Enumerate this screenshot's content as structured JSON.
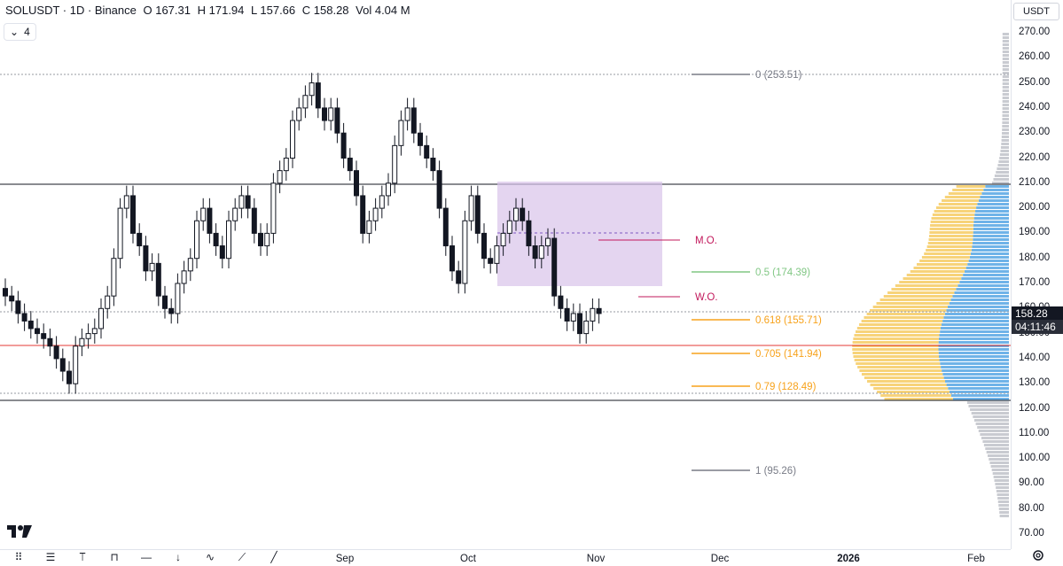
{
  "legend": {
    "symbol": "SOLUSDT · 1D · Binance",
    "open": "O 167.31",
    "high": "H 171.94",
    "low": "L 157.66",
    "close": "C 158.28",
    "volume": "Vol 4.04 M"
  },
  "indicator_toggle": {
    "count": "4",
    "chevron": "⌄"
  },
  "currency": "USDT",
  "price_axis": [
    "270.00",
    "260.00",
    "250.00",
    "240.00",
    "230.00",
    "220.00",
    "210.00",
    "200.00",
    "190.00",
    "180.00",
    "170.00",
    "160.00",
    "150.00",
    "140.00",
    "130.00",
    "120.00",
    "110.00",
    "100.00",
    "90.00",
    "80.00",
    "70.00"
  ],
  "time_axis": [
    {
      "label": "Sep",
      "bold": false
    },
    {
      "label": "Oct",
      "bold": false
    },
    {
      "label": "Nov",
      "bold": false
    },
    {
      "label": "Dec",
      "bold": false
    },
    {
      "label": "2026",
      "bold": true
    },
    {
      "label": "Feb",
      "bold": false
    }
  ],
  "last_price": "158.28",
  "countdown": "04:11:46",
  "fib_levels": [
    {
      "label": "0 (253.51)",
      "color": "#787b86"
    },
    {
      "label": "0.5 (174.39)",
      "color": "#81c784"
    },
    {
      "label": "0.618 (155.71)",
      "color": "#f7a21b"
    },
    {
      "label": "0.705 (141.94)",
      "color": "#f7a21b"
    },
    {
      "label": "0.79 (128.49)",
      "color": "#f7a21b"
    },
    {
      "label": "1 (95.26)",
      "color": "#787b86"
    }
  ],
  "annotations": [
    {
      "label": "M.O.",
      "color": "#c2185b"
    },
    {
      "label": "W.O.",
      "color": "#c2185b"
    }
  ],
  "logo_text": "17",
  "toolbar_icons": [
    "grid-icon",
    "lines-icon",
    "text-cursor-icon",
    "measure-icon",
    "horizontal-line-icon",
    "arrow-down-icon",
    "curve-icon",
    "draw-icon",
    "ray-icon"
  ],
  "settings_icon": "settings-icon",
  "colors": {
    "bull": "#131722",
    "bear": "#131722",
    "zone": "#d8c3ea",
    "vp_up": "#f7d37a",
    "vp_down": "#6fb3e8",
    "vp_outside": "#c9cbd1",
    "support": "#e53935"
  },
  "chart_data": {
    "type": "candlestick",
    "x_range": [
      "2025-07-05",
      "2026-02-05"
    ],
    "y_range": [
      65,
      277
    ],
    "candles_approx_close": [
      165,
      163,
      158,
      155,
      152,
      150,
      148,
      145,
      140,
      135,
      130,
      145,
      148,
      150,
      152,
      160,
      165,
      180,
      200,
      205,
      190,
      185,
      175,
      178,
      165,
      160,
      158,
      170,
      175,
      180,
      195,
      200,
      190,
      185,
      180,
      195,
      200,
      205,
      200,
      190,
      185,
      190,
      210,
      215,
      220,
      235,
      240,
      245,
      250,
      240,
      235,
      240,
      230,
      220,
      215,
      205,
      190,
      195,
      200,
      205,
      210,
      225,
      235,
      240,
      230,
      225,
      220,
      215,
      200,
      185,
      175,
      170,
      195,
      205,
      190,
      180,
      178,
      185,
      190,
      195,
      200,
      195,
      185,
      180,
      185,
      188,
      165,
      160,
      155,
      158,
      150,
      155,
      160,
      158
    ]
  }
}
